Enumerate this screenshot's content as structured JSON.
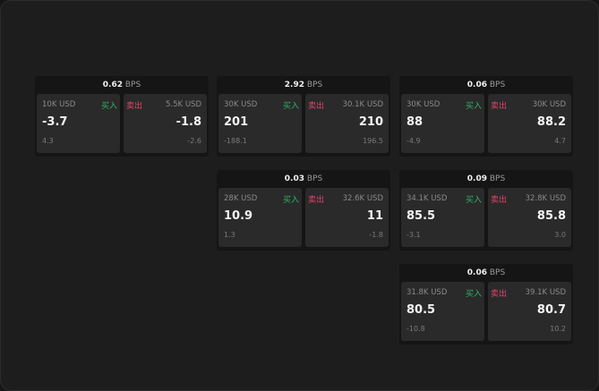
{
  "colors": {
    "buy": "#2fb36a",
    "sell": "#e0456a"
  },
  "buy_label": "买入",
  "sell_label": "卖出",
  "unit": "BPS",
  "cards": [
    {
      "spread": "0.62",
      "buy": {
        "amount": "10K USD",
        "price": "-3.7",
        "change": "4.3"
      },
      "sell": {
        "amount": "5.5K USD",
        "price": "-1.8",
        "change": "-2.6"
      }
    },
    {
      "spread": "2.92",
      "buy": {
        "amount": "30K USD",
        "price": "201",
        "change": "-188.1"
      },
      "sell": {
        "amount": "30.1K USD",
        "price": "210",
        "change": "196.5"
      }
    },
    {
      "spread": "0.06",
      "buy": {
        "amount": "30K USD",
        "price": "88",
        "change": "-4.9"
      },
      "sell": {
        "amount": "30K USD",
        "price": "88.2",
        "change": "4.7"
      }
    },
    {
      "spread": "0.03",
      "buy": {
        "amount": "28K USD",
        "price": "10.9",
        "change": "1.3"
      },
      "sell": {
        "amount": "32.6K USD",
        "price": "11",
        "change": "-1.8"
      }
    },
    {
      "spread": "0.09",
      "buy": {
        "amount": "34.1K USD",
        "price": "85.5",
        "change": "-3.1"
      },
      "sell": {
        "amount": "32.8K USD",
        "price": "85.8",
        "change": "3.0"
      }
    },
    {
      "spread": "0.06",
      "buy": {
        "amount": "31.8K USD",
        "price": "80.5",
        "change": "-10.8"
      },
      "sell": {
        "amount": "39.1K USD",
        "price": "80.7",
        "change": "10.2"
      }
    }
  ]
}
